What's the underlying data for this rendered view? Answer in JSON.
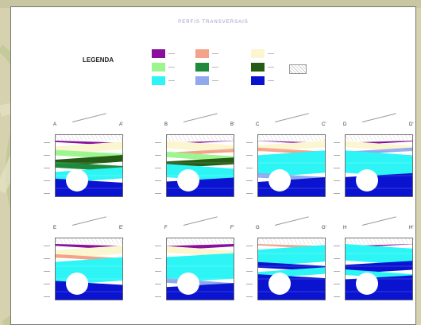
{
  "title": "PERFIS TRANSVERSAIS",
  "legend": {
    "heading": "LEGENDA",
    "items": [
      {
        "color": "#8a0f9c"
      },
      {
        "color": "#9df58f"
      },
      {
        "color": "#2ef5f5"
      },
      {
        "color": "#f3a38a"
      },
      {
        "color": "#1d8a3c"
      },
      {
        "color": "#90a8ee"
      },
      {
        "color": "#fbf6cf"
      },
      {
        "color": "#245c16"
      },
      {
        "color": "#0a14d0"
      }
    ]
  },
  "profiles": [
    {
      "start": "A",
      "end": "A'",
      "layers": [
        [
          "#8a0f9c",
          0.0,
          0.06
        ],
        [
          "#fbf6cf",
          0.06,
          0.2
        ],
        [
          "#9df58f",
          0.2,
          0.3
        ],
        [
          "#245c16",
          0.3,
          0.42
        ],
        [
          "#1d8a3c",
          0.42,
          0.52
        ],
        [
          "#2ef5f5",
          0.52,
          0.72
        ],
        [
          "#0a14d0",
          0.72,
          1.0
        ]
      ]
    },
    {
      "start": "B",
      "end": "B'",
      "layers": [
        [
          "#8a0f9c",
          0.0,
          0.04
        ],
        [
          "#fbf6cf",
          0.04,
          0.18
        ],
        [
          "#f3a38a",
          0.18,
          0.24
        ],
        [
          "#9df58f",
          0.24,
          0.34
        ],
        [
          "#245c16",
          0.34,
          0.46
        ],
        [
          "#2ef5f5",
          0.46,
          0.7
        ],
        [
          "#0a14d0",
          0.7,
          1.0
        ]
      ]
    },
    {
      "start": "C",
      "end": "C'",
      "layers": [
        [
          "#8a0f9c",
          0.0,
          0.04
        ],
        [
          "#fbf6cf",
          0.04,
          0.16
        ],
        [
          "#f3a38a",
          0.16,
          0.22
        ],
        [
          "#2ef5f5",
          0.22,
          0.62
        ],
        [
          "#90a8ee",
          0.62,
          0.7
        ],
        [
          "#0a14d0",
          0.7,
          1.0
        ]
      ]
    },
    {
      "start": "D",
      "end": "D'",
      "layers": [
        [
          "#8a0f9c",
          0.0,
          0.05
        ],
        [
          "#fbf6cf",
          0.05,
          0.16
        ],
        [
          "#90a8ee",
          0.16,
          0.22
        ],
        [
          "#2ef5f5",
          0.22,
          0.62
        ],
        [
          "#0a14d0",
          0.62,
          1.0
        ]
      ]
    },
    {
      "start": "E",
      "end": "E'",
      "layers": [
        [
          "#8a0f9c",
          0.0,
          0.07
        ],
        [
          "#fbf6cf",
          0.07,
          0.22
        ],
        [
          "#f3a38a",
          0.22,
          0.28
        ],
        [
          "#2ef5f5",
          0.28,
          0.7
        ],
        [
          "#0a14d0",
          0.7,
          1.0
        ]
      ]
    },
    {
      "start": "F",
      "end": "F'",
      "layers": [
        [
          "#8a0f9c",
          0.0,
          0.08
        ],
        [
          "#fbf6cf",
          0.08,
          0.2
        ],
        [
          "#2ef5f5",
          0.2,
          0.66
        ],
        [
          "#90a8ee",
          0.66,
          0.74
        ],
        [
          "#0a14d0",
          0.74,
          1.0
        ]
      ]
    },
    {
      "start": "G",
      "end": "G'",
      "layers": [
        [
          "#f3a38a",
          0.0,
          0.06
        ],
        [
          "#2ef5f5",
          0.06,
          0.36
        ],
        [
          "#0a14d0",
          0.36,
          0.46
        ],
        [
          "#2ef5f5",
          0.46,
          0.58
        ],
        [
          "#0a14d0",
          0.58,
          1.0
        ]
      ]
    },
    {
      "start": "H",
      "end": "H'",
      "layers": [
        [
          "#8a0f9c",
          0.0,
          0.04
        ],
        [
          "#2ef5f5",
          0.04,
          0.34
        ],
        [
          "#0a14d0",
          0.34,
          0.5
        ],
        [
          "#2ef5f5",
          0.5,
          0.6
        ],
        [
          "#0a14d0",
          0.6,
          1.0
        ]
      ]
    }
  ]
}
